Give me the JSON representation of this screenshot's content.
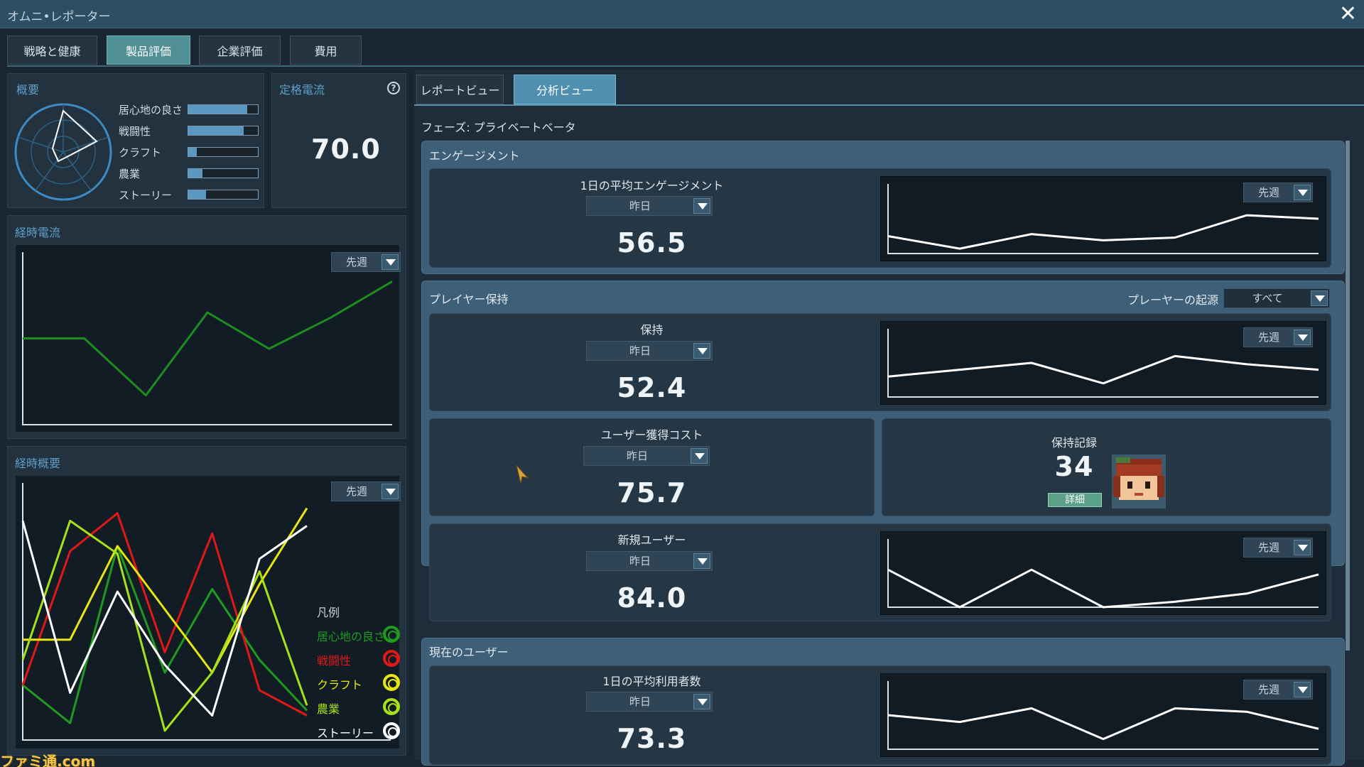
{
  "app": {
    "title": "オムニ•レポーター"
  },
  "main_tabs": [
    {
      "label": "戦略と健康"
    },
    {
      "label": "製品評価"
    },
    {
      "label": "企業評価"
    },
    {
      "label": "費用"
    }
  ],
  "overview": {
    "title": "概要",
    "bars": [
      {
        "label": "居心地の良さ",
        "value": 0.85
      },
      {
        "label": "戦闘性",
        "value": 0.8
      },
      {
        "label": "クラフト",
        "value": 0.12
      },
      {
        "label": "農業",
        "value": 0.2
      },
      {
        "label": "ストーリー",
        "value": 0.25
      }
    ]
  },
  "rated_current": {
    "title": "定格電流",
    "value": "70.0"
  },
  "current_over_time": {
    "title": "経時電流",
    "dropdown": "先週"
  },
  "overview_over_time": {
    "title": "経時概要",
    "dropdown": "先週",
    "legend_title": "凡例",
    "legend": [
      {
        "label": "居心地の良さ",
        "color": "#1f9a1f"
      },
      {
        "label": "戦闘性",
        "color": "#e01818"
      },
      {
        "label": "クラフト",
        "color": "#e6e612"
      },
      {
        "label": "農業",
        "color": "#a6e21a"
      },
      {
        "label": "ストーリー",
        "color": "#ffffff"
      }
    ]
  },
  "sub_tabs": [
    {
      "label": "レポートビュー"
    },
    {
      "label": "分析ビュー"
    }
  ],
  "phase": "フェーズ: プライベートベータ",
  "engagement": {
    "title": "エンゲージメント",
    "card_title": "1日の平均エンゲージメント",
    "period": "昨日",
    "value": "56.5",
    "chart_dropdown": "先週"
  },
  "retention": {
    "title": "プレイヤー保持",
    "origin_label": "プレーヤーの起源",
    "origin_value": "すべて",
    "card_title": "保持",
    "period": "昨日",
    "value": "52.4",
    "chart_dropdown": "先週",
    "acquisition": {
      "title": "ユーザー獲得コスト",
      "period": "昨日",
      "value": "75.7"
    },
    "record": {
      "title": "保持記録",
      "value": "34",
      "button": "詳細"
    },
    "new_users": {
      "title": "新規ユーザー",
      "period": "昨日",
      "value": "84.0",
      "chart_dropdown": "先週"
    }
  },
  "current_users": {
    "title": "現在のユーザー",
    "card_title": "1日の平均利用者数",
    "period": "昨日",
    "value": "73.3",
    "chart_dropdown": "先週"
  },
  "watermark": "ファミ通.com",
  "colors": {
    "accent": "#4f8f95",
    "panel": "#22323e",
    "section": "#3d5f78"
  },
  "chart_data": [
    {
      "type": "line",
      "name": "経時電流",
      "series": [
        {
          "values": [
            50,
            50,
            17,
            65,
            44,
            62,
            83
          ],
          "color": "#1f8c1f"
        }
      ],
      "ylim": [
        0,
        100
      ]
    },
    {
      "type": "line",
      "name": "経時概要",
      "ylim": [
        0,
        100
      ],
      "series": [
        {
          "values": [
            20,
            5,
            75,
            25,
            58,
            30,
            10
          ],
          "color": "#1f9a1f"
        },
        {
          "values": [
            20,
            73,
            88,
            33,
            80,
            18,
            8
          ],
          "color": "#e01818"
        },
        {
          "values": [
            38,
            38,
            75,
            50,
            25,
            60,
            90
          ],
          "color": "#e6e612"
        },
        {
          "values": [
            30,
            85,
            72,
            2,
            25,
            65,
            12
          ],
          "color": "#a6e21a"
        },
        {
          "values": [
            85,
            17,
            57,
            28,
            8,
            70,
            83
          ],
          "color": "#ffffff"
        }
      ]
    },
    {
      "type": "line",
      "name": "エンゲージメント",
      "series": [
        {
          "values": [
            25,
            7,
            28,
            19,
            23,
            55,
            50
          ]
        }
      ],
      "ylim": [
        0,
        100
      ]
    },
    {
      "type": "line",
      "name": "保持",
      "series": [
        {
          "values": [
            30,
            40,
            50,
            20,
            60,
            48,
            40
          ]
        }
      ],
      "ylim": [
        0,
        100
      ]
    },
    {
      "type": "line",
      "name": "新規ユーザー",
      "series": [
        {
          "values": [
            55,
            0,
            55,
            0,
            8,
            20,
            48
          ]
        }
      ],
      "ylim": [
        0,
        100
      ]
    },
    {
      "type": "line",
      "name": "現在のユーザー",
      "series": [
        {
          "values": [
            50,
            40,
            60,
            15,
            60,
            55,
            30
          ]
        }
      ],
      "ylim": [
        0,
        100
      ]
    }
  ]
}
